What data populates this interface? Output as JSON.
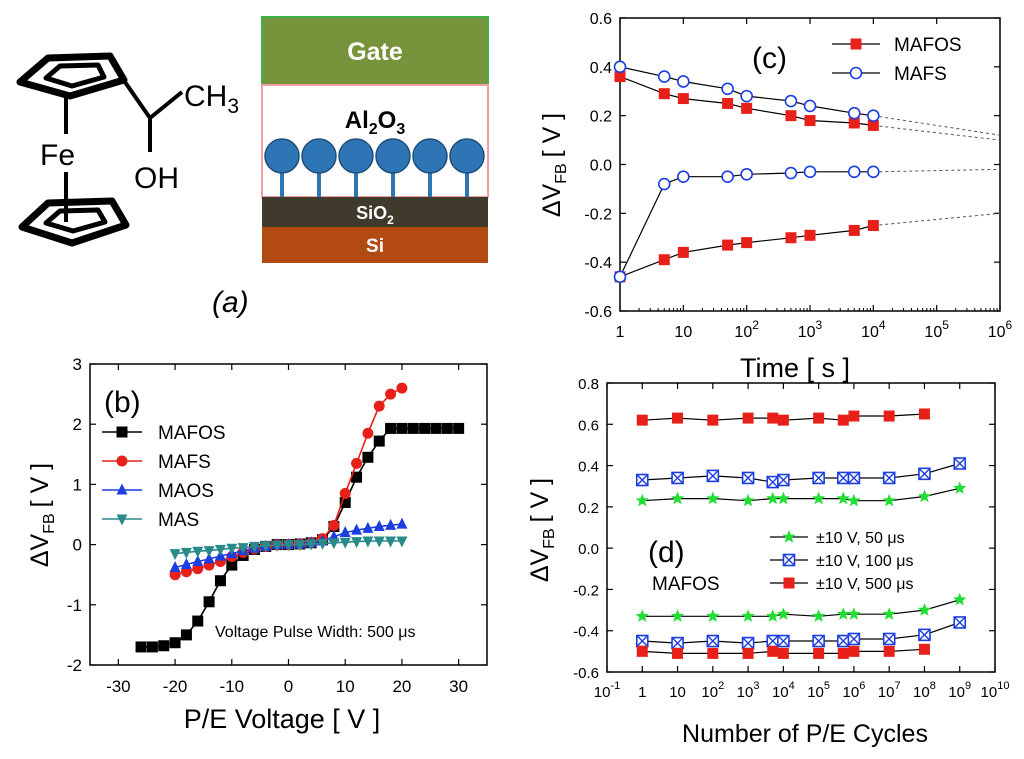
{
  "figure": {
    "panel_a": {
      "label": "(a)",
      "molecule": {
        "fe": "Fe",
        "ch3": "CH",
        "ch3_sub": "3",
        "oh": "OH"
      },
      "stack": {
        "gate": "Gate",
        "oxide": "Al",
        "oxide_sub1": "2",
        "oxide_o": "O",
        "oxide_sub2": "3",
        "sio2": "SiO",
        "sio2_sub": "2",
        "si": "Si"
      },
      "colors": {
        "gate": "#77933c",
        "sio2": "#403a2c",
        "si": "#b34a12",
        "molecule": "#2e75b6"
      }
    }
  },
  "chart_data": [
    {
      "panel": "(b)",
      "type": "line",
      "xlabel": "P/E Voltage [ V ]",
      "ylabel_main": "ΔV",
      "ylabel_sub": "FB",
      "ylabel_unit": "[ V ]",
      "xlim": [
        -35,
        35
      ],
      "ylim": [
        -2,
        3
      ],
      "xticks": [
        "-30",
        "-20",
        "-10",
        "0",
        "10",
        "20",
        "30"
      ],
      "yticks": [
        "-2",
        "-1",
        "0",
        "1",
        "2",
        "3"
      ],
      "annotation": "Voltage Pulse Width: 500 μs",
      "legend": [
        "MAFOS",
        "MAFS",
        "MAOS",
        "MAS"
      ],
      "series": [
        {
          "name": "MAFOS",
          "color": "#000000",
          "marker": "square",
          "x": [
            -26,
            -24,
            -22,
            -20,
            -18,
            -16,
            -14,
            -12,
            -10,
            -8,
            -6,
            -4,
            -2,
            0,
            2,
            4,
            6,
            8,
            10,
            12,
            14,
            16,
            18,
            20,
            22,
            24,
            26,
            28,
            30
          ],
          "y": [
            -1.7,
            -1.7,
            -1.68,
            -1.63,
            -1.5,
            -1.27,
            -0.95,
            -0.6,
            -0.34,
            -0.18,
            -0.08,
            -0.03,
            0,
            0,
            0.01,
            0.03,
            0.08,
            0.3,
            0.7,
            1.12,
            1.45,
            1.72,
            1.93,
            1.93,
            1.93,
            1.93,
            1.93,
            1.93,
            1.93
          ]
        },
        {
          "name": "MAFS",
          "color": "#e8201a",
          "marker": "circle",
          "x": [
            -20,
            -18,
            -16,
            -14,
            -12,
            -10,
            -8,
            -6,
            -4,
            -2,
            0,
            2,
            4,
            6,
            8,
            10,
            12,
            14,
            16,
            18,
            20
          ],
          "y": [
            -0.5,
            -0.45,
            -0.4,
            -0.34,
            -0.28,
            -0.2,
            -0.13,
            -0.07,
            -0.03,
            0,
            0,
            0.01,
            0.03,
            0.1,
            0.32,
            0.85,
            1.35,
            1.85,
            2.3,
            2.5,
            2.6
          ]
        },
        {
          "name": "MAOS",
          "color": "#1c3ee0",
          "marker": "triangle-up",
          "x": [
            -20,
            -18,
            -16,
            -14,
            -12,
            -10,
            -8,
            -6,
            -4,
            -2,
            0,
            2,
            4,
            6,
            8,
            10,
            12,
            14,
            16,
            18,
            20
          ],
          "y": [
            -0.38,
            -0.33,
            -0.28,
            -0.24,
            -0.19,
            -0.15,
            -0.1,
            -0.06,
            -0.03,
            0,
            0,
            0.01,
            0.03,
            0.06,
            0.13,
            0.2,
            0.24,
            0.27,
            0.3,
            0.32,
            0.34
          ]
        },
        {
          "name": "MAS",
          "color": "#2a8a8a",
          "marker": "triangle-down",
          "x": [
            -20,
            -18,
            -16,
            -14,
            -12,
            -10,
            -8,
            -6,
            -4,
            -2,
            0,
            2,
            4,
            6,
            8,
            10,
            12,
            14,
            16,
            18,
            20
          ],
          "y": [
            -0.15,
            -0.13,
            -0.11,
            -0.1,
            -0.08,
            -0.06,
            -0.05,
            -0.03,
            -0.02,
            -0.01,
            0,
            0,
            0.01,
            0.02,
            0.03,
            0.04,
            0.05,
            0.06,
            0.06,
            0.06,
            0.06
          ]
        }
      ]
    },
    {
      "panel": "(c)",
      "type": "line",
      "xlabel": "Time [ s ]",
      "ylabel_main": "ΔV",
      "ylabel_sub": "FB",
      "ylabel_unit": "[ V ]",
      "xscale": "log",
      "xlim_exp": [
        0,
        6
      ],
      "ylim": [
        -0.6,
        0.6
      ],
      "xticks": [
        {
          "base": "1",
          "exp": ""
        },
        {
          "base": "10",
          "exp": ""
        },
        {
          "base": "10",
          "exp": "2"
        },
        {
          "base": "10",
          "exp": "3"
        },
        {
          "base": "10",
          "exp": "4"
        },
        {
          "base": "10",
          "exp": "5"
        },
        {
          "base": "10",
          "exp": "6"
        }
      ],
      "yticks": [
        "-0.6",
        "-0.4",
        "-0.2",
        "0.0",
        "0.2",
        "0.4",
        "0.6"
      ],
      "legend": [
        "MAFOS",
        "MAFS"
      ],
      "series": [
        {
          "name": "MAFOS",
          "color": "#e8201a",
          "marker": "square",
          "group": "upper",
          "logx": [
            0,
            0.699,
            1,
            1.699,
            2,
            2.699,
            3,
            3.699,
            4
          ],
          "y": [
            0.36,
            0.29,
            0.27,
            0.25,
            0.23,
            0.2,
            0.18,
            0.17,
            0.16
          ],
          "extrap": [
            [
              4,
              0.16
            ],
            [
              6,
              0.1
            ]
          ]
        },
        {
          "name": "MAFS",
          "color": "#1c3ee0",
          "marker": "circle-open",
          "group": "upper",
          "logx": [
            0,
            0.699,
            1,
            1.699,
            2,
            2.699,
            3,
            3.699,
            4
          ],
          "y": [
            0.4,
            0.36,
            0.34,
            0.31,
            0.28,
            0.26,
            0.24,
            0.21,
            0.2
          ],
          "extrap": [
            [
              4,
              0.2
            ],
            [
              6,
              0.12
            ]
          ]
        },
        {
          "name": "MAFOS",
          "color": "#e8201a",
          "marker": "square",
          "group": "lower",
          "logx": [
            0,
            0.699,
            1,
            1.699,
            2,
            2.699,
            3,
            3.699,
            4
          ],
          "y": [
            -0.46,
            -0.39,
            -0.36,
            -0.33,
            -0.32,
            -0.3,
            -0.29,
            -0.27,
            -0.25
          ],
          "extrap": [
            [
              4,
              -0.25
            ],
            [
              6,
              -0.2
            ]
          ]
        },
        {
          "name": "MAFS",
          "color": "#1c3ee0",
          "marker": "circle-open",
          "group": "lower",
          "logx": [
            0,
            0.699,
            1,
            1.699,
            2,
            2.699,
            3,
            3.699,
            4
          ],
          "y": [
            -0.46,
            -0.08,
            -0.05,
            -0.05,
            -0.04,
            -0.035,
            -0.03,
            -0.03,
            -0.03
          ],
          "extrap": [
            [
              4,
              -0.03
            ],
            [
              6,
              -0.02
            ]
          ]
        }
      ]
    },
    {
      "panel": "(d)",
      "type": "line",
      "xlabel": "Number of P/E Cycles",
      "ylabel_main": "ΔV",
      "ylabel_sub": "FB",
      "ylabel_unit": "[ V ]",
      "xscale": "log",
      "xlim_exp": [
        -1,
        10
      ],
      "ylim": [
        -0.6,
        0.8
      ],
      "xticks": [
        {
          "base": "10",
          "exp": "-1"
        },
        {
          "base": "1",
          "exp": ""
        },
        {
          "base": "10",
          "exp": ""
        },
        {
          "base": "10",
          "exp": "2"
        },
        {
          "base": "10",
          "exp": "3"
        },
        {
          "base": "10",
          "exp": "4"
        },
        {
          "base": "10",
          "exp": "5"
        },
        {
          "base": "10",
          "exp": "6"
        },
        {
          "base": "10",
          "exp": "7"
        },
        {
          "base": "10",
          "exp": "8"
        },
        {
          "base": "10",
          "exp": "9"
        },
        {
          "base": "10",
          "exp": "10"
        }
      ],
      "yticks": [
        "-0.6",
        "-0.4",
        "-0.2",
        "0.0",
        "0.2",
        "0.4",
        "0.6",
        "0.8"
      ],
      "device": "MAFOS",
      "legend": [
        "±10 V, 50 μs",
        "±10 V, 100 μs",
        "±10 V, 500 μs"
      ],
      "series": [
        {
          "name": "±10 V, 500 μs",
          "color": "#e8201a",
          "marker": "square",
          "group": "program",
          "logx": [
            0,
            1,
            2,
            3,
            3.699,
            4,
            5,
            5.699,
            6,
            7,
            8
          ],
          "y": [
            0.62,
            0.63,
            0.62,
            0.63,
            0.63,
            0.62,
            0.63,
            0.62,
            0.64,
            0.64,
            0.65
          ]
        },
        {
          "name": "±10 V, 100 μs",
          "color": "#1c3ee0",
          "marker": "box-x",
          "group": "program",
          "logx": [
            0,
            1,
            2,
            3,
            3.699,
            4,
            5,
            5.699,
            6,
            7,
            8,
            9
          ],
          "y": [
            0.33,
            0.34,
            0.35,
            0.34,
            0.32,
            0.33,
            0.34,
            0.34,
            0.34,
            0.34,
            0.36,
            0.41
          ]
        },
        {
          "name": "±10 V, 50 μs",
          "color": "#22dd33",
          "marker": "star",
          "group": "program",
          "logx": [
            0,
            1,
            2,
            3,
            3.699,
            4,
            5,
            5.699,
            6,
            7,
            8,
            9
          ],
          "y": [
            0.23,
            0.24,
            0.24,
            0.23,
            0.24,
            0.24,
            0.24,
            0.24,
            0.23,
            0.23,
            0.25,
            0.29
          ]
        },
        {
          "name": "±10 V, 50 μs",
          "color": "#22dd33",
          "marker": "star",
          "group": "erase",
          "logx": [
            0,
            1,
            2,
            3,
            3.699,
            4,
            5,
            5.699,
            6,
            7,
            8,
            9
          ],
          "y": [
            -0.33,
            -0.33,
            -0.33,
            -0.33,
            -0.33,
            -0.32,
            -0.33,
            -0.32,
            -0.32,
            -0.32,
            -0.3,
            -0.25
          ]
        },
        {
          "name": "±10 V, 100 μs",
          "color": "#1c3ee0",
          "marker": "box-x",
          "group": "erase",
          "logx": [
            0,
            1,
            2,
            3,
            3.699,
            4,
            5,
            5.699,
            6,
            7,
            8,
            9
          ],
          "y": [
            -0.45,
            -0.46,
            -0.45,
            -0.46,
            -0.45,
            -0.45,
            -0.45,
            -0.45,
            -0.44,
            -0.44,
            -0.42,
            -0.36
          ]
        },
        {
          "name": "±10 V, 500 μs",
          "color": "#e8201a",
          "marker": "square",
          "group": "erase",
          "logx": [
            0,
            1,
            2,
            3,
            3.699,
            4,
            5,
            5.699,
            6,
            7,
            8
          ],
          "y": [
            -0.5,
            -0.51,
            -0.51,
            -0.51,
            -0.5,
            -0.51,
            -0.51,
            -0.51,
            -0.5,
            -0.5,
            -0.49
          ]
        }
      ]
    }
  ]
}
